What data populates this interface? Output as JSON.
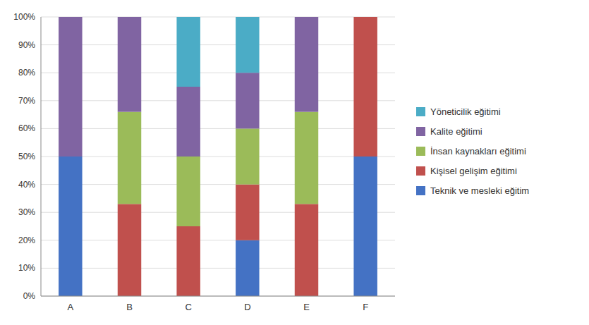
{
  "chart_data": {
    "type": "bar",
    "stacked": true,
    "categories": [
      "A",
      "B",
      "C",
      "D",
      "E",
      "F"
    ],
    "series": [
      {
        "name": "Teknik ve mesleki eğitim",
        "color": "#4472C4",
        "values": [
          50,
          0,
          0,
          20,
          0,
          50
        ]
      },
      {
        "name": "Kişisel gelişim eğitimi",
        "color": "#C0504D",
        "values": [
          0,
          33,
          25,
          20,
          33,
          50
        ]
      },
      {
        "name": "İnsan kaynakları eğitimi",
        "color": "#9BBB59",
        "values": [
          0,
          33,
          25,
          20,
          33,
          0
        ]
      },
      {
        "name": "Kalite eğitimi",
        "color": "#8064A2",
        "values": [
          50,
          34,
          25,
          20,
          34,
          0
        ]
      },
      {
        "name": "Yöneticilik eğitimi",
        "color": "#4BACC6",
        "values": [
          0,
          0,
          25,
          20,
          0,
          0
        ]
      }
    ],
    "ylim": [
      0,
      100
    ],
    "yticks": [
      {
        "value": 0,
        "label": "0%"
      },
      {
        "value": 10,
        "label": "10%"
      },
      {
        "value": 20,
        "label": "20%"
      },
      {
        "value": 30,
        "label": "30%"
      },
      {
        "value": 40,
        "label": "40%"
      },
      {
        "value": 50,
        "label": "50%"
      },
      {
        "value": 60,
        "label": "60%"
      },
      {
        "value": 70,
        "label": "70%"
      },
      {
        "value": 80,
        "label": "80%"
      },
      {
        "value": 90,
        "label": "90%"
      },
      {
        "value": 100,
        "label": "100%"
      }
    ],
    "grid": true,
    "legend": "right"
  }
}
